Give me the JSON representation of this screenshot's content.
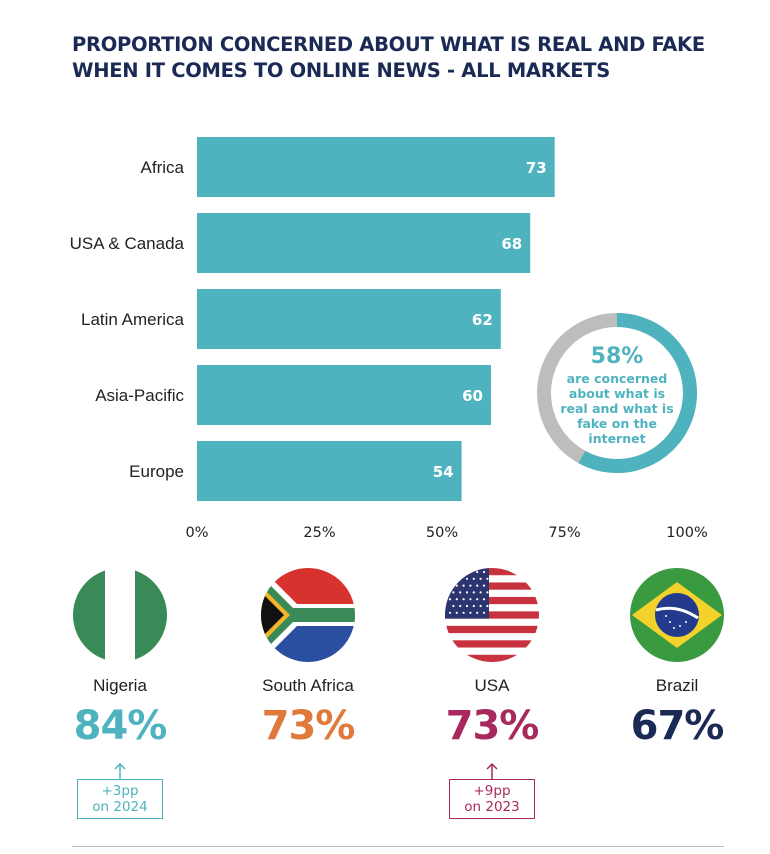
{
  "title": {
    "line1": "PROPORTION CONCERNED ABOUT WHAT IS REAL AND FAKE",
    "line2": "WHEN IT COMES TO ONLINE NEWS - ALL MARKETS"
  },
  "chart_data": {
    "type": "bar",
    "orientation": "horizontal",
    "categories": [
      "Africa",
      "USA & Canada",
      "Latin America",
      "Asia-Pacific",
      "Europe"
    ],
    "values": [
      73,
      68,
      62,
      60,
      54
    ],
    "xlim": [
      0,
      100
    ],
    "ticks": [
      "0%",
      "25%",
      "50%",
      "75%",
      "100%"
    ],
    "tick_values": [
      0,
      25,
      50,
      75,
      100
    ],
    "grid": false,
    "bar_color": "#4fb3bf"
  },
  "donut": {
    "value": 58,
    "headline": "58%",
    "lines": [
      "are concerned",
      "about what is",
      "real and what is",
      "fake on the",
      "internet"
    ],
    "fill_color": "#4fb3bf",
    "rest_color": "#bdbdbd"
  },
  "countries": [
    {
      "name": "Nigeria",
      "pct": "84%",
      "color": "#4fb3bf",
      "flag": "nigeria-flag-icon",
      "change": {
        "line1": "+3pp",
        "line2": "on 2024",
        "color": "#4fb3bf"
      }
    },
    {
      "name": "South Africa",
      "pct": "73%",
      "color": "#e07a3b",
      "flag": "south-africa-flag-icon"
    },
    {
      "name": "USA",
      "pct": "73%",
      "color": "#a8295e",
      "flag": "usa-flag-icon",
      "change": {
        "line1": "+9pp",
        "line2": "on 2023",
        "color": "#a8295e"
      }
    },
    {
      "name": "Brazil",
      "pct": "67%",
      "color": "#1b2a55",
      "flag": "brazil-flag-icon"
    }
  ]
}
